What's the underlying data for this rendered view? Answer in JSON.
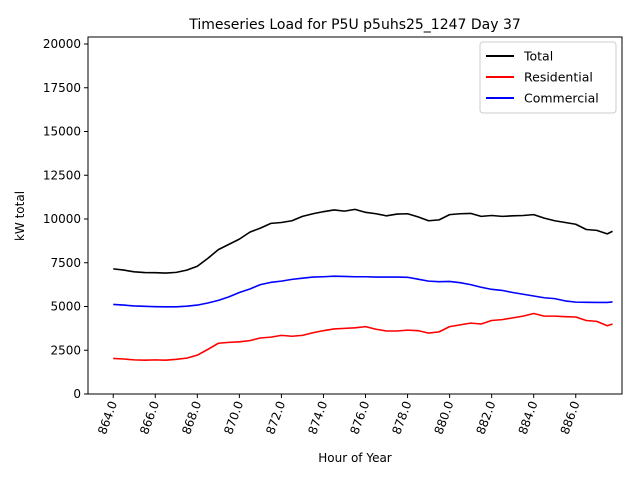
{
  "chart_data": {
    "type": "line",
    "title": "Timeseries Load for P5U p5uhs25_1247  Day 37",
    "xlabel": "Hour of Year",
    "ylabel": "kW total",
    "xlim": [
      862.8,
      888.2
    ],
    "ylim": [
      0,
      20400
    ],
    "xticks": [
      864,
      866,
      868,
      870,
      872,
      874,
      876,
      878,
      880,
      882,
      884,
      886
    ],
    "xtick_labels": [
      "864.0",
      "866.0",
      "868.0",
      "870.0",
      "872.0",
      "874.0",
      "876.0",
      "878.0",
      "880.0",
      "882.0",
      "884.0",
      "886.0"
    ],
    "yticks": [
      0,
      2500,
      5000,
      7500,
      10000,
      12500,
      15000,
      17500,
      20000
    ],
    "ytick_labels": [
      "0",
      "2500",
      "5000",
      "7500",
      "10000",
      "12500",
      "15000",
      "17500",
      "20000"
    ],
    "legend_position": "top-right",
    "x": [
      864.0,
      864.5,
      865.0,
      865.5,
      866.0,
      866.5,
      867.0,
      867.5,
      868.0,
      868.5,
      869.0,
      869.5,
      870.0,
      870.5,
      871.0,
      871.5,
      872.0,
      872.5,
      873.0,
      873.5,
      874.0,
      874.5,
      875.0,
      875.5,
      876.0,
      876.5,
      877.0,
      877.5,
      878.0,
      878.5,
      879.0,
      879.5,
      880.0,
      880.5,
      881.0,
      881.5,
      882.0,
      882.5,
      883.0,
      883.5,
      884.0,
      884.5,
      885.0,
      885.5,
      886.0,
      886.5,
      887.0,
      887.5,
      887.75
    ],
    "series": [
      {
        "name": "Total",
        "color": "#000000",
        "values": [
          7150,
          7080,
          6980,
          6940,
          6930,
          6910,
          6950,
          7080,
          7300,
          7750,
          8250,
          8550,
          8850,
          9250,
          9480,
          9750,
          9800,
          9900,
          10150,
          10300,
          10420,
          10520,
          10450,
          10550,
          10380,
          10300,
          10180,
          10280,
          10300,
          10120,
          9900,
          9950,
          10250,
          10300,
          10320,
          10150,
          10200,
          10150,
          10180,
          10200,
          10250,
          10050,
          9900,
          9800,
          9700,
          9400,
          9350,
          9150,
          9300
        ]
      },
      {
        "name": "Residential",
        "color": "#ff0000",
        "values": [
          2030,
          2000,
          1950,
          1930,
          1950,
          1930,
          1980,
          2050,
          2220,
          2550,
          2900,
          2950,
          2980,
          3050,
          3200,
          3250,
          3350,
          3300,
          3350,
          3500,
          3620,
          3720,
          3750,
          3780,
          3850,
          3700,
          3600,
          3600,
          3650,
          3620,
          3480,
          3550,
          3850,
          3950,
          4050,
          4000,
          4200,
          4250,
          4350,
          4450,
          4600,
          4450,
          4450,
          4420,
          4400,
          4200,
          4150,
          3900,
          4000
        ]
      },
      {
        "name": "Commercial",
        "color": "#0000ff",
        "values": [
          5120,
          5080,
          5030,
          5010,
          4990,
          4980,
          4980,
          5020,
          5080,
          5200,
          5350,
          5550,
          5800,
          6000,
          6250,
          6380,
          6450,
          6550,
          6620,
          6680,
          6700,
          6730,
          6720,
          6700,
          6700,
          6680,
          6680,
          6680,
          6670,
          6560,
          6450,
          6420,
          6430,
          6360,
          6250,
          6100,
          5980,
          5920,
          5800,
          5700,
          5600,
          5500,
          5450,
          5320,
          5250,
          5240,
          5230,
          5230,
          5260
        ]
      }
    ]
  }
}
